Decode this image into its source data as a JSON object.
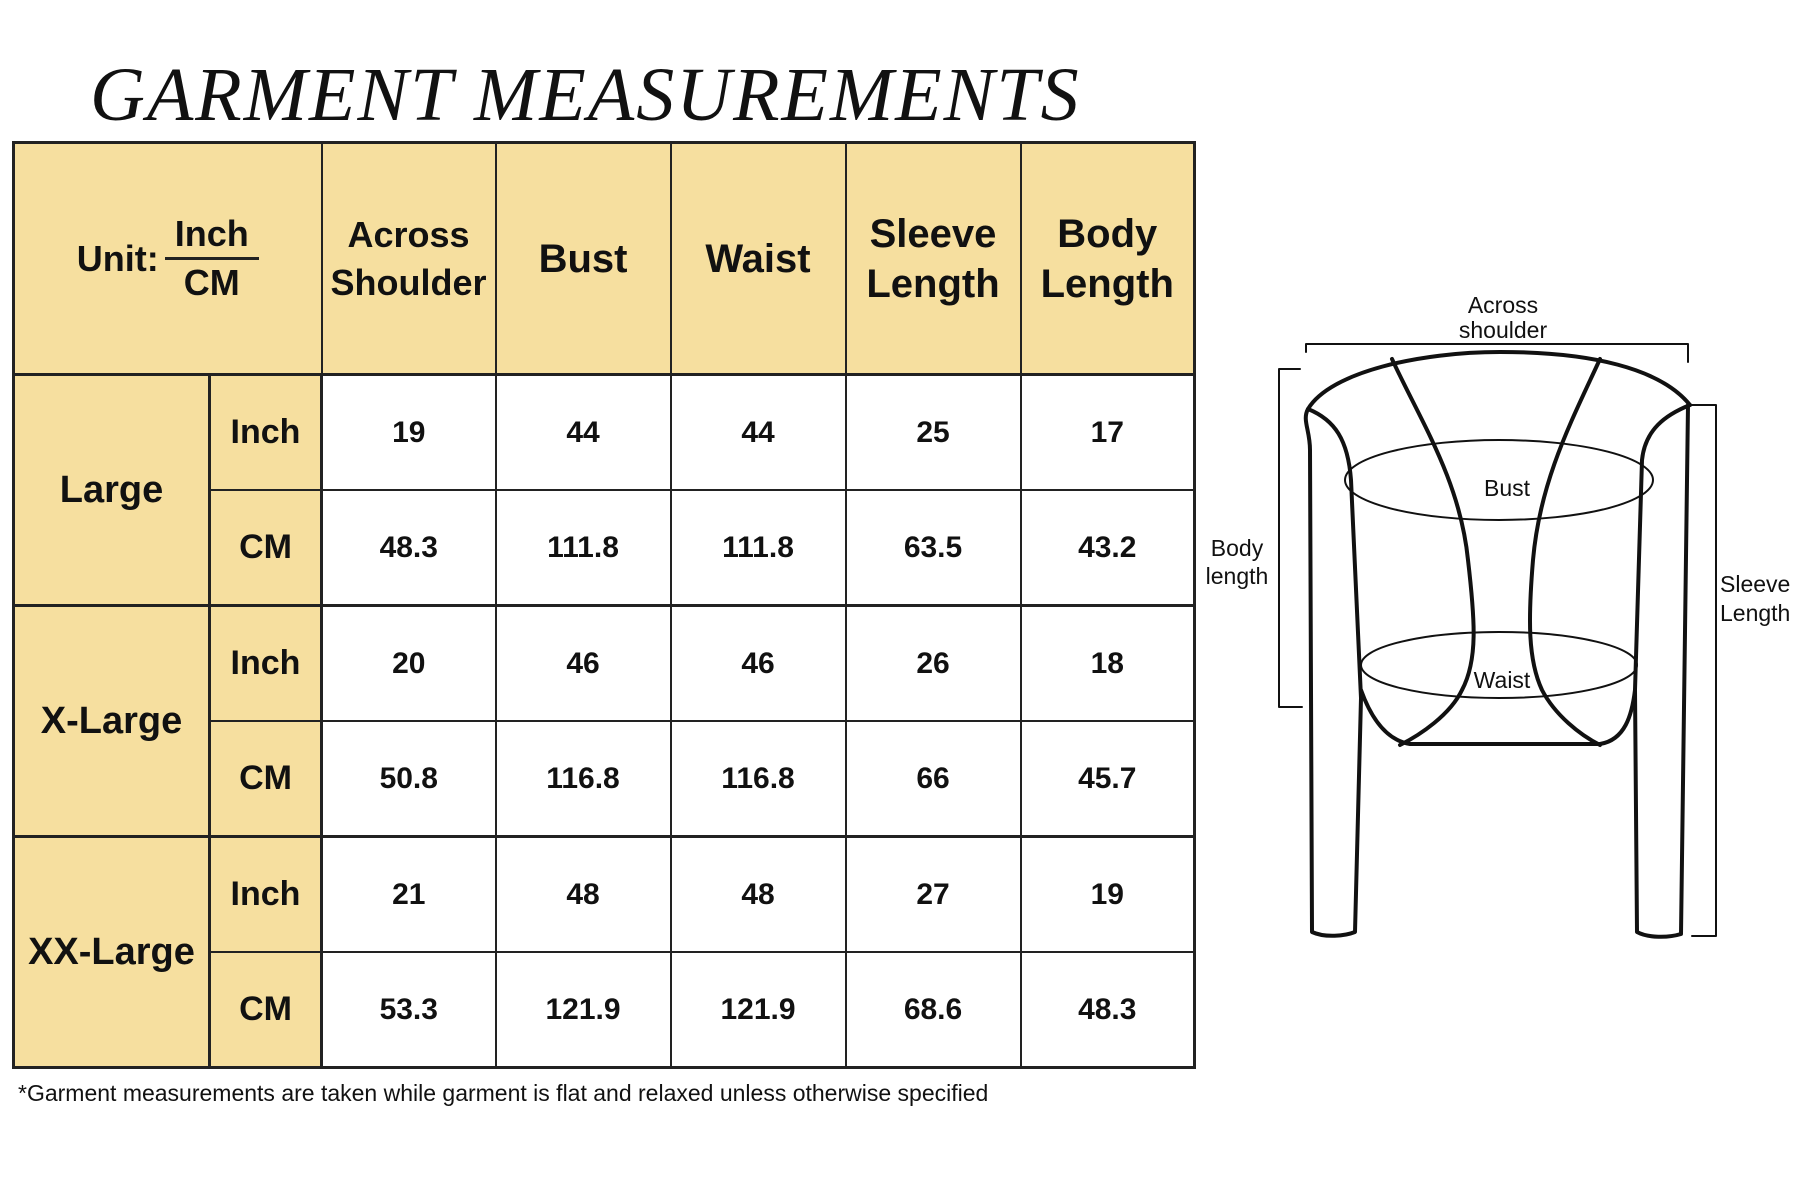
{
  "title": "GARMENT MEASUREMENTS",
  "table": {
    "unit_label": "Unit:",
    "unit_top": "Inch",
    "unit_bottom": "CM",
    "columns": [
      "Across Shoulder",
      "Bust",
      "Waist",
      "Sleeve Length",
      "Body Length"
    ],
    "sizes": [
      {
        "name": "Large",
        "rows": [
          {
            "unit": "Inch",
            "values": [
              "19",
              "44",
              "44",
              "25",
              "17"
            ]
          },
          {
            "unit": "CM",
            "values": [
              "48.3",
              "111.8",
              "111.8",
              "63.5",
              "43.2"
            ]
          }
        ]
      },
      {
        "name": "X-Large",
        "rows": [
          {
            "unit": "Inch",
            "values": [
              "20",
              "46",
              "46",
              "26",
              "18"
            ]
          },
          {
            "unit": "CM",
            "values": [
              "50.8",
              "116.8",
              "116.8",
              "66",
              "45.7"
            ]
          }
        ]
      },
      {
        "name": "XX-Large",
        "rows": [
          {
            "unit": "Inch",
            "values": [
              "21",
              "48",
              "48",
              "27",
              "19"
            ]
          },
          {
            "unit": "CM",
            "values": [
              "53.3",
              "121.9",
              "121.9",
              "68.6",
              "48.3"
            ]
          }
        ]
      }
    ],
    "header_color": "#f6df9f"
  },
  "footnote": "*Garment measurements are taken while garment is flat and relaxed unless otherwise specified",
  "diagram": {
    "across_shoulder": [
      "Across",
      "shoulder"
    ],
    "bust": "Bust",
    "waist": "Waist",
    "body_length": [
      "Body",
      "length"
    ],
    "sleeve_length": [
      "Sleeve",
      "Length"
    ]
  }
}
